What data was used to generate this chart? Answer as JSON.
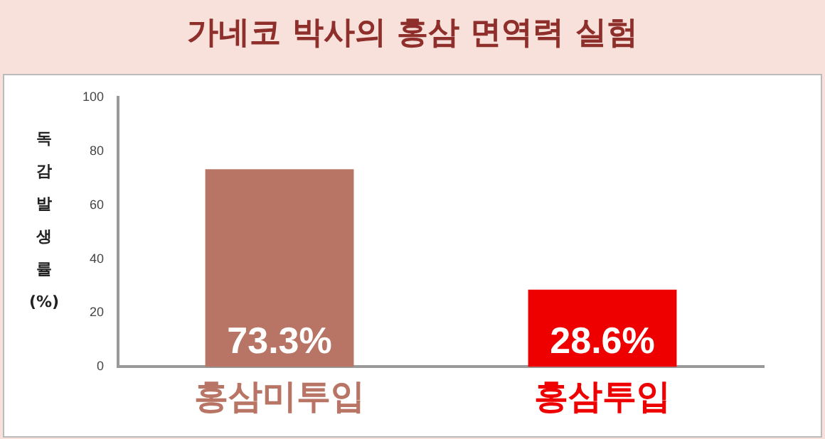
{
  "chart_data": {
    "type": "bar",
    "title": "가네코 박사의 홍삼 면역력 실험",
    "ylabel": "독감발생률(%)",
    "categories": [
      "홍삼미투입",
      "홍삼투입"
    ],
    "values": [
      73.3,
      28.6
    ],
    "colors": [
      "#b87464",
      "#ee0000"
    ],
    "value_labels": [
      "73.3%",
      "28.6%"
    ],
    "ylim": [
      0,
      100
    ],
    "yticks": [
      0,
      20,
      40,
      60,
      80,
      100
    ],
    "grid": false,
    "legend": false
  }
}
